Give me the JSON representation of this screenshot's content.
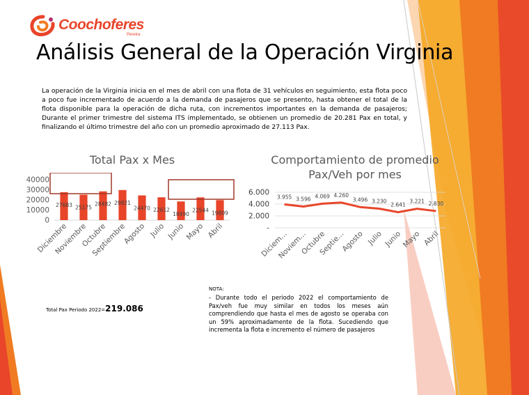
{
  "logo": {
    "brand": "Coochoferes",
    "sub": "Pereira"
  },
  "title": "Análisis General de la Operación Virginia",
  "intro": "La operación de la Virginia inicia en el mes de abril con una flota de 31 vehículos en seguimiento, esta flota poco a poco fue incrementado de acuerdo a la demanda de pasajeros que se presento, hasta obtener el total de la flota disponible para la operación de dicha ruta, con incrementos importantes en la demanda de pasajeros; Durante el primer trimestre del sistema ITS implementado, se obtienen un promedio de 20.281 Pax en total, y finalizando el último trimestre del año con un promedio aproximado de 27.113 Pax.",
  "chart_data": [
    {
      "type": "bar",
      "title": "Total Pax x Mes",
      "categories": [
        "Diciembre",
        "Noviembre",
        "Octubre",
        "Septiembre",
        "Agosto",
        "Julio",
        "Junio",
        "Mayo",
        "Abril"
      ],
      "values": [
        27683,
        25175,
        28482,
        29821,
        24470,
        22612,
        18490,
        22544,
        19809
      ],
      "value_labels": [
        "27683",
        "25175",
        "28482",
        "29821",
        "24470",
        "22612",
        "18490",
        "22544",
        "19809"
      ],
      "yticks": [
        "40000",
        "30000",
        "20000",
        "10000",
        "0"
      ],
      "ylim": [
        0,
        40000
      ],
      "color": "#e8452a",
      "grid": false
    },
    {
      "type": "line",
      "title": "Comportamiento de promedio Pax/Veh por mes",
      "categories": [
        "Diciem...",
        "Noviem...",
        "Octubre",
        "Septie...",
        "Agosto",
        "Julio",
        "Junio",
        "Mayo",
        "Abril"
      ],
      "values": [
        3955,
        3596,
        4069,
        4260,
        3496,
        3230,
        2641,
        3221,
        2830
      ],
      "value_labels": [
        "3.955",
        "3.596",
        "4.069",
        "4.260",
        "3.496",
        "3.230",
        "2.641",
        "3.221",
        "2.830"
      ],
      "yticks": [
        "6.000",
        "4.000",
        "2.000",
        "-"
      ],
      "ylim": [
        0,
        6000
      ],
      "color": "#e8452a",
      "grid": true
    }
  ],
  "total": {
    "label": "Total Pax Periodo 2022=",
    "value": "219.086"
  },
  "note": {
    "heading": "NOTA:",
    "text": "- Durante todo el periodo 2022 el comportamiento de Pax/veh fue muy similar en todos los meses aún comprendiendo que hasta el mes de agosto se operaba con un 59% aproximadamente de la flota. Sucediendo que incrementa la flota e incremento el número de pasajeros"
  },
  "colors": {
    "accent": "#e8452a",
    "decor_orange": "#f07b22",
    "decor_yellow": "#f5a623",
    "decor_red": "#e8452a"
  }
}
